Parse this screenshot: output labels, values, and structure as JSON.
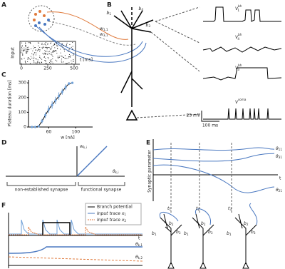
{
  "A": {
    "label": "A",
    "ylabel": "Input",
    "xticks": [
      0,
      250,
      500
    ],
    "xlabel": "t [ms]",
    "w11": {
      "base": "w",
      "sub": "1,1"
    },
    "w31": {
      "base": "w",
      "sub": "3,1"
    }
  },
  "B": {
    "label": "B",
    "branches": [
      {
        "base": "b",
        "sub": "1"
      },
      {
        "base": "b",
        "sub": "4"
      },
      {
        "base": "b",
        "sub": "3"
      }
    ],
    "traces": [
      {
        "base": "V",
        "sup": "bh",
        "sub": "1"
      },
      {
        "base": "V",
        "sup": "bh",
        "sub": "4"
      },
      {
        "base": "V",
        "sup": "bh",
        "sub": "3"
      },
      {
        "base": "V",
        "sup": "soma"
      }
    ],
    "scale_v": "25 mV",
    "scale_t": "100 ms"
  },
  "C": {
    "label": "C",
    "ylabel": "Plateau duration [ms]",
    "xlabel": "w [nA]",
    "xlim": [
      30,
      125
    ],
    "ylim": [
      0,
      320
    ],
    "xticks": [
      60,
      100
    ],
    "yticks": [
      0,
      100,
      200,
      300
    ],
    "x": [
      35,
      40,
      45,
      50,
      55,
      60,
      65,
      70,
      75,
      80,
      85,
      90,
      95
    ],
    "y": [
      0,
      0,
      5,
      40,
      80,
      120,
      150,
      180,
      210,
      240,
      270,
      295,
      300
    ],
    "err": [
      0,
      0,
      5,
      15,
      20,
      25,
      25,
      25,
      25,
      20,
      20,
      10,
      0
    ]
  },
  "D": {
    "label": "D",
    "wki": {
      "base": "w",
      "sub": "k,i"
    },
    "theta": {
      "base": "θ",
      "sub": "k,i"
    },
    "left": "non-established synapse",
    "right": "functional synapse"
  },
  "E": {
    "label": "E",
    "ylabel": "Synaptic parameter",
    "thetas": [
      {
        "base": "θ",
        "sub": "11"
      },
      {
        "base": "θ",
        "sub": "31"
      },
      {
        "base": "θ",
        "sub": "21"
      }
    ],
    "times": [
      {
        "base": "t",
        "sub": "1"
      },
      {
        "base": "t",
        "sub": "2"
      },
      {
        "base": "t",
        "sub": "3"
      }
    ],
    "t": "t",
    "tree": [
      {
        "base": "b",
        "sub": "1"
      },
      {
        "base": "b",
        "sub": "2"
      },
      {
        "base": "b",
        "sub": "3"
      }
    ]
  },
  "F": {
    "label": "F",
    "legend": [
      "Branch potential",
      {
        "base": "Input trace x",
        "sub": "1"
      },
      {
        "base": "Input trace x",
        "sub": "2"
      }
    ],
    "thetas": [
      {
        "base": "θ",
        "sub": "k,1"
      },
      {
        "base": "θ",
        "sub": "k,2"
      }
    ],
    "t": "t"
  }
}
